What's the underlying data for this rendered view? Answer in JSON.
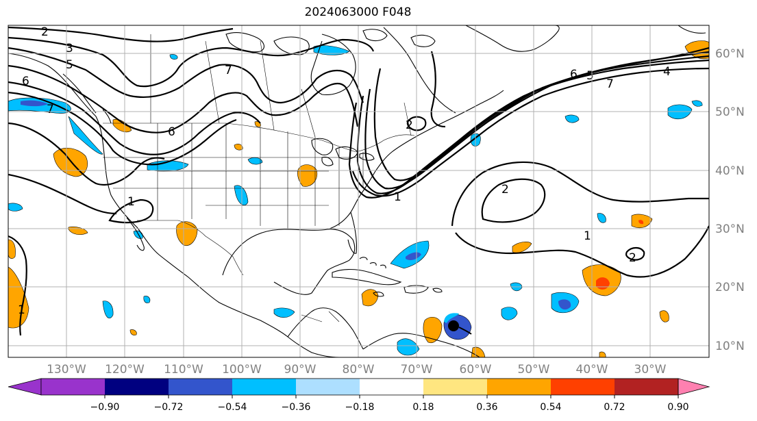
{
  "title": "2024063000 F048",
  "lon_labels": [
    "130°W",
    "120°W",
    "110°W",
    "100°W",
    "90°W",
    "80°W",
    "70°W",
    "60°W",
    "50°W",
    "40°W",
    "30°W"
  ],
  "lat_labels": [
    "60°N",
    "50°N",
    "40°N",
    "30°N",
    "20°N",
    "10°N"
  ],
  "colorbar": {
    "labels": [
      "−0.90",
      "−0.72",
      "−0.54",
      "−0.36",
      "−0.18",
      "0.18",
      "0.36",
      "0.54",
      "0.72",
      "0.90"
    ],
    "colors": {
      "under": "#9933cc",
      "bins": [
        "#9933cc",
        "#000080",
        "#3355cc",
        "#00bfff",
        "#addfff",
        "#ffffff",
        "#ffe680",
        "#ffa500",
        "#ff4000",
        "#b22222"
      ],
      "over": "#ff80b0"
    }
  },
  "contour_labels": [
    "2",
    "3",
    "5",
    "6",
    "7",
    "6",
    "7",
    "1",
    "2",
    "6",
    "5",
    "4",
    "7",
    "2",
    "1",
    "2",
    "1",
    "1"
  ]
}
